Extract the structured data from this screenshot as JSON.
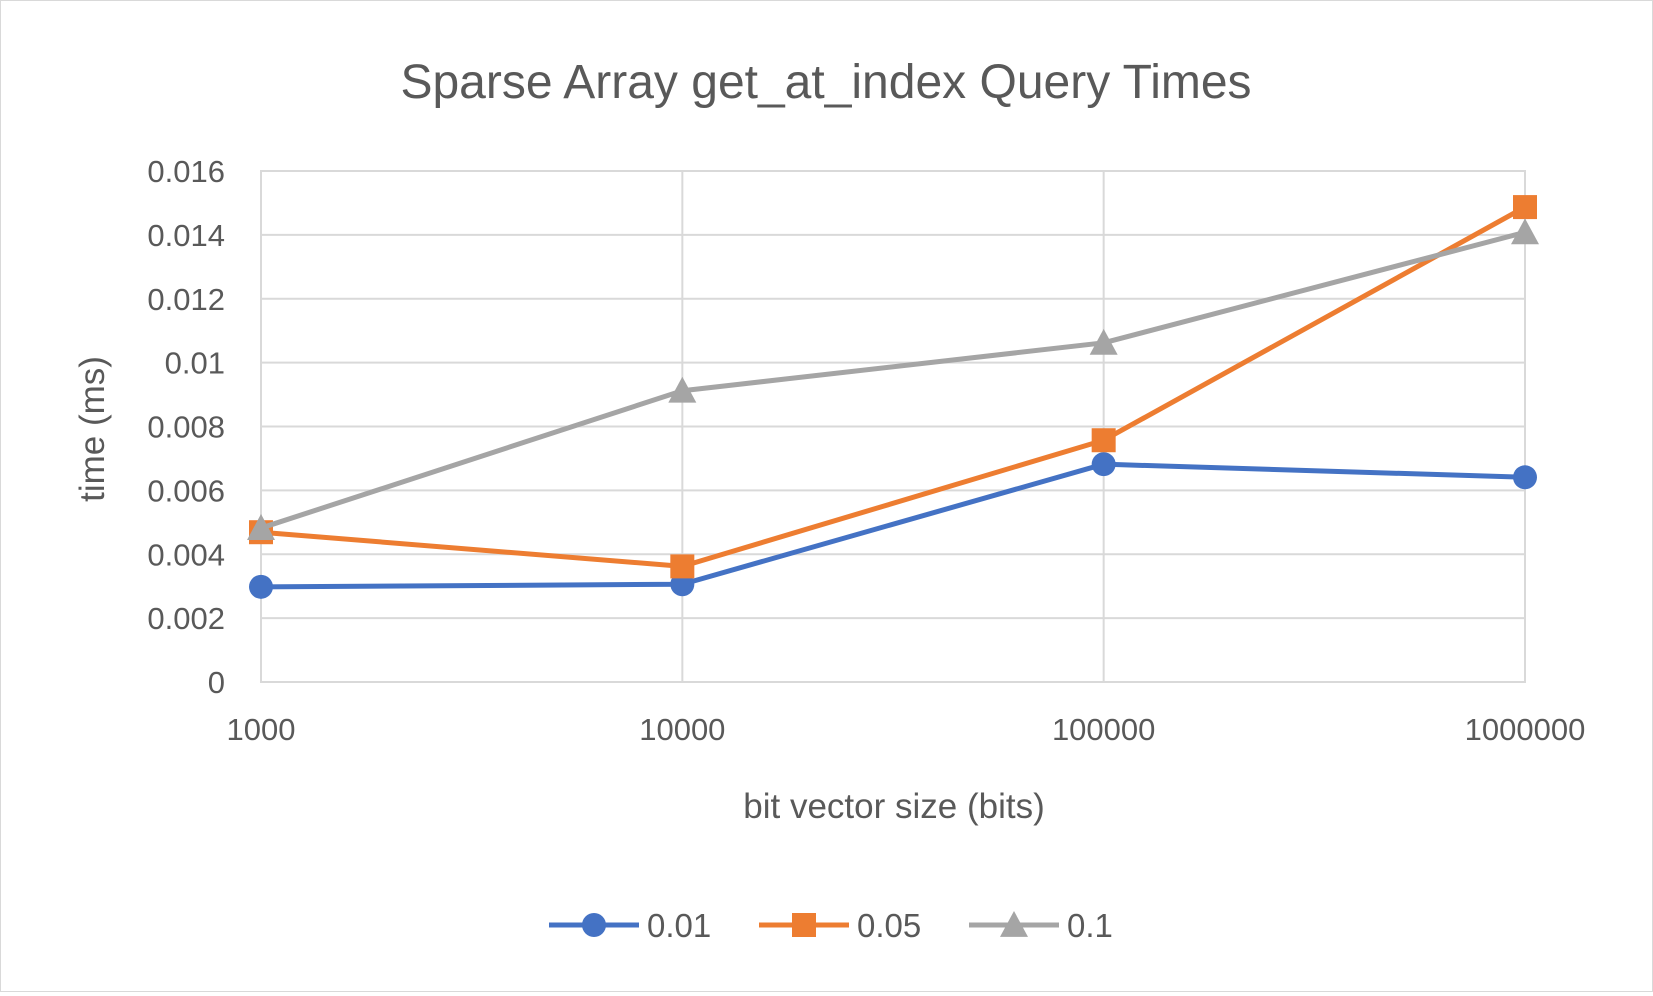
{
  "chart_data": {
    "type": "line",
    "title": "Sparse Array get_at_index Query Times",
    "xlabel": "bit vector size (bits)",
    "ylabel": "time (ms)",
    "categories": [
      "1000",
      "10000",
      "100000",
      "1000000"
    ],
    "x_scale": "log",
    "ylim": [
      0,
      0.016
    ],
    "yticks": [
      "0",
      "0.002",
      "0.004",
      "0.006",
      "0.008",
      "0.01",
      "0.012",
      "0.014",
      "0.016"
    ],
    "grid": true,
    "legend": "bottom",
    "series": [
      {
        "name": "0.01",
        "marker": "circle",
        "color": "#4472c4",
        "values": [
          0.00298,
          0.00306,
          0.00682,
          0.00641
        ]
      },
      {
        "name": "0.05",
        "marker": "square",
        "color": "#ed7d31",
        "values": [
          0.00469,
          0.00362,
          0.00757,
          0.01487
        ]
      },
      {
        "name": "0.1",
        "marker": "triangle",
        "color": "#a5a5a5",
        "values": [
          0.00482,
          0.00912,
          0.01062,
          0.01408
        ]
      }
    ]
  }
}
